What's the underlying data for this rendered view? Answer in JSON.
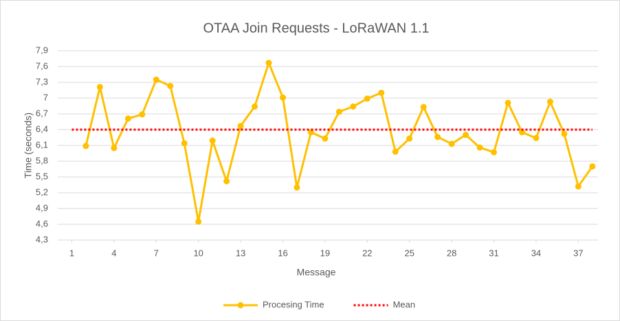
{
  "chart_data": {
    "type": "line",
    "title": "OTAA Join Requests - LoRaWAN 1.1",
    "xlabel": "Message",
    "ylabel": "Time (seconds)",
    "xlim": [
      0,
      38.4
    ],
    "xticks": [
      1,
      4,
      7,
      10,
      13,
      16,
      19,
      22,
      25,
      28,
      31,
      34,
      37
    ],
    "ylim": [
      4.3,
      7.9
    ],
    "yticks": [
      {
        "value": 4.3,
        "label": "4,3"
      },
      {
        "value": 4.6,
        "label": "4,6"
      },
      {
        "value": 4.9,
        "label": "4,9"
      },
      {
        "value": 5.2,
        "label": "5,2"
      },
      {
        "value": 5.5,
        "label": "5,5"
      },
      {
        "value": 5.8,
        "label": "5,8"
      },
      {
        "value": 6.1,
        "label": "6,1"
      },
      {
        "value": 6.4,
        "label": "6,4"
      },
      {
        "value": 6.7,
        "label": "6,7"
      },
      7,
      {
        "value": 7.3,
        "label": "7,3"
      },
      {
        "value": 7.6,
        "label": "7,6"
      },
      {
        "value": 7.9,
        "label": "7,9"
      }
    ],
    "grid": true,
    "legend": "bottom",
    "series": [
      {
        "name": "Procesing Time",
        "color": "#FFC000",
        "markers": true,
        "style": "solid",
        "x": [
          2,
          3,
          4,
          5,
          6,
          7,
          8,
          9,
          10,
          11,
          12,
          13,
          14,
          15,
          16,
          17,
          18,
          19,
          20,
          21,
          22,
          23,
          24,
          25,
          26,
          27,
          28,
          29,
          30,
          31,
          32,
          33,
          34,
          35,
          36,
          37,
          38
        ],
        "values": [
          6.09,
          7.21,
          6.05,
          6.61,
          6.69,
          7.35,
          7.23,
          6.14,
          4.65,
          6.19,
          5.42,
          6.47,
          6.84,
          7.67,
          7.01,
          5.3,
          6.35,
          6.23,
          6.74,
          6.84,
          6.99,
          7.1,
          5.98,
          6.23,
          6.83,
          6.26,
          6.13,
          6.3,
          6.06,
          5.97,
          6.91,
          6.35,
          6.24,
          6.93,
          6.32,
          5.32,
          5.7
        ]
      },
      {
        "name": "Mean",
        "color": "#FF0000",
        "markers": false,
        "style": "dotted",
        "x": [
          1,
          38
        ],
        "values": [
          6.4,
          6.4
        ]
      }
    ]
  }
}
